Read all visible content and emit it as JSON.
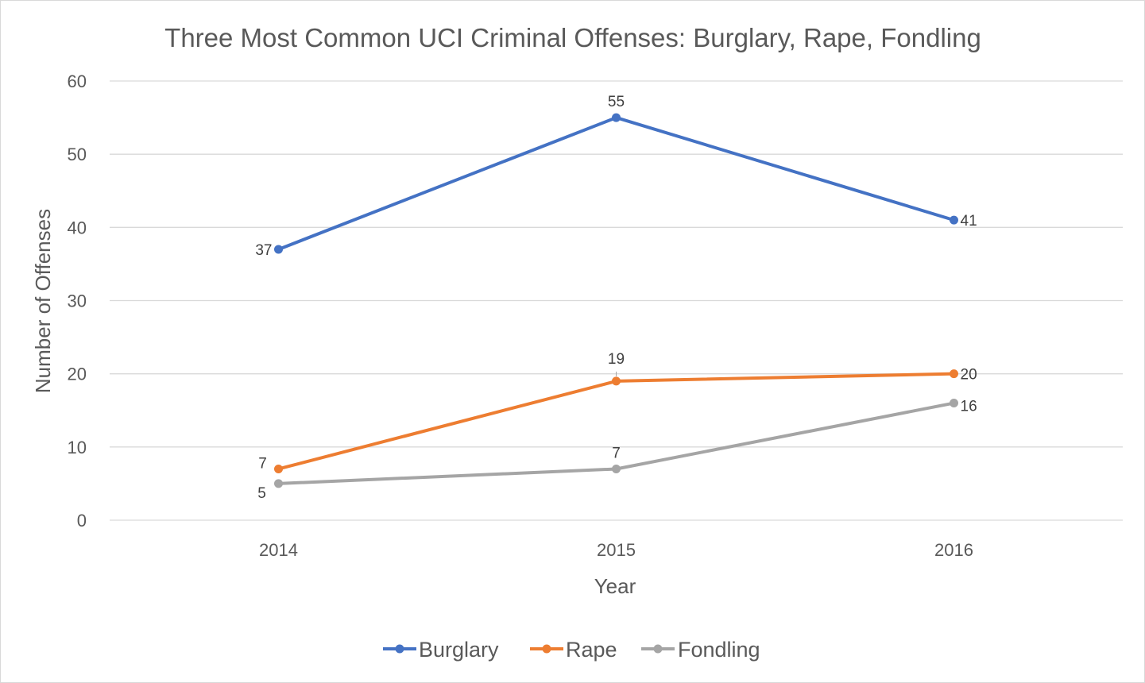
{
  "chart_data": {
    "type": "line",
    "title": "Three Most Common UCI Criminal Offenses: Burglary, Rape, Fondling",
    "xlabel": "Year",
    "ylabel": "Number of Offenses",
    "categories": [
      "2014",
      "2015",
      "2016"
    ],
    "ylim": [
      0,
      60
    ],
    "yticks": [
      0,
      10,
      20,
      30,
      40,
      50,
      60
    ],
    "grid": true,
    "legend_position": "bottom",
    "series": [
      {
        "name": "Burglary",
        "color": "#4472c4",
        "values": [
          37,
          55,
          41
        ]
      },
      {
        "name": "Rape",
        "color": "#ed7d31",
        "values": [
          7,
          19,
          20
        ]
      },
      {
        "name": "Fondling",
        "color": "#a5a5a5",
        "values": [
          5,
          7,
          16
        ]
      }
    ]
  }
}
